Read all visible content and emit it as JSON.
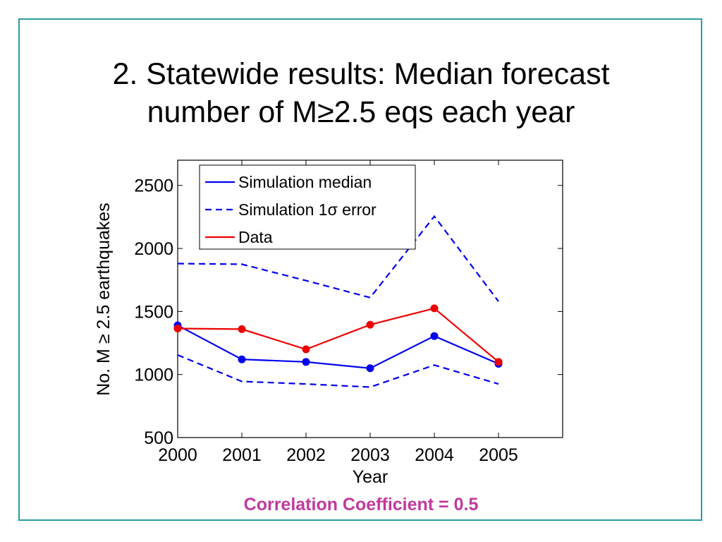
{
  "slide": {
    "title_line1": "2. Statewide results: Median forecast",
    "title_line2": "number of M≥2.5 eqs each year",
    "footer": "Correlation Coefficient = 0.5"
  },
  "colors": {
    "frame": "#2a9aa3",
    "simulation": "#0000ee",
    "data": "#ee0000",
    "footer": "#c0399e"
  },
  "chart_data": {
    "type": "line",
    "xlabel": "Year",
    "ylabel": "No. M ≥ 2.5 earthquakes",
    "xlim": [
      2000,
      2006
    ],
    "ylim": [
      500,
      2700
    ],
    "x_ticks": [
      2000,
      2001,
      2002,
      2003,
      2004,
      2005
    ],
    "x_tick_labels": [
      "2000",
      "2001",
      "2002",
      "2003",
      "2004",
      "2005"
    ],
    "y_ticks": [
      500,
      1000,
      1500,
      2000,
      2500
    ],
    "y_tick_labels": [
      "500",
      "1000",
      "1500",
      "2000",
      "2500"
    ],
    "legend_position": "top-left",
    "x": [
      2000,
      2001,
      2002,
      2003,
      2004,
      2005
    ],
    "series": [
      {
        "name": "Simulation median",
        "style": "solid",
        "color": "#0000ee",
        "markers": true,
        "values": [
          1390,
          1120,
          1100,
          1050,
          1305,
          1085
        ]
      },
      {
        "name": "Simulation 1σ error",
        "style": "dashed",
        "color": "#0000ee",
        "markers": false,
        "legend": true,
        "values": [
          1880,
          1875,
          1745,
          1610,
          2255,
          1580
        ]
      },
      {
        "style": "dashed",
        "color": "#0000ee",
        "markers": false,
        "legend": false,
        "values": [
          1155,
          945,
          925,
          900,
          1075,
          925
        ]
      },
      {
        "name": "Data",
        "style": "solid",
        "color": "#ee0000",
        "markers": true,
        "values": [
          1365,
          1360,
          1200,
          1395,
          1525,
          1100
        ]
      }
    ]
  }
}
